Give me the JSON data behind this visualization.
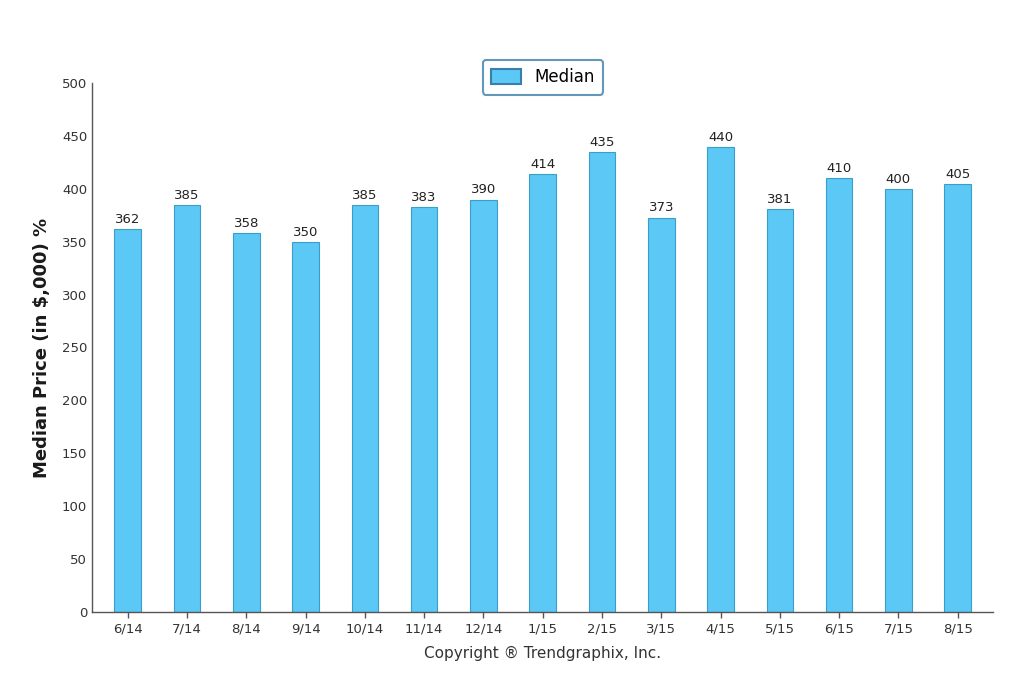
{
  "categories": [
    "6/14",
    "7/14",
    "8/14",
    "9/14",
    "10/14",
    "11/14",
    "12/14",
    "1/15",
    "2/15",
    "3/15",
    "4/15",
    "5/15",
    "6/15",
    "7/15",
    "8/15"
  ],
  "values": [
    362,
    385,
    358,
    350,
    385,
    383,
    390,
    414,
    435,
    373,
    440,
    381,
    410,
    400,
    405
  ],
  "bar_color": "#5BC8F5",
  "bar_edge_color": "#3A9EC8",
  "ylabel": "Median Price (in $,000) %",
  "xlabel": "Copyright ® Trendgraphix, Inc.",
  "ylim": [
    0,
    500
  ],
  "yticks": [
    0,
    50,
    100,
    150,
    200,
    250,
    300,
    350,
    400,
    450,
    500
  ],
  "legend_label": "Median",
  "legend_facecolor": "#5BC8F5",
  "legend_edgecolor": "#3A7EAA",
  "background_color": "#ffffff",
  "bar_width": 0.45,
  "label_fontsize": 9.5,
  "axis_label_fontsize": 13,
  "tick_fontsize": 9.5,
  "xlabel_fontsize": 11,
  "value_label_color": "#222222"
}
